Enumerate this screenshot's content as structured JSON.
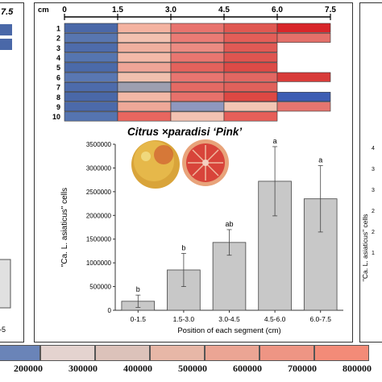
{
  "left_panel": {
    "tick_label": "7.5",
    "bottom_tick": "-5"
  },
  "right_panel": {
    "ylabel": "\"Ca. L. asiaticus\" cells",
    "yticks": [
      "4",
      "3",
      "3",
      "2",
      "2",
      "1"
    ]
  },
  "heatmap": {
    "unit": "cm",
    "ticks": [
      "0",
      "1.5",
      "3.0",
      "4.5",
      "6.0",
      "7.5"
    ],
    "rows": [
      "1",
      "2",
      "3",
      "4",
      "5",
      "6",
      "7",
      "8",
      "9",
      "10"
    ],
    "colors": [
      [
        "#4a68a8",
        "#f4b3a1",
        "#e8736e",
        "#e05852",
        "#d8262a"
      ],
      [
        "#5876b0",
        "#f2c1b0",
        "#ea7b75",
        "#e35e58",
        "#e4706a"
      ],
      [
        "#4e6cab",
        "#f0b09f",
        "#ec8b82",
        "#e05a55",
        ""
      ],
      [
        "#5575b0",
        "#f3b9a8",
        "#e97670",
        "#df5550",
        ""
      ],
      [
        "#4b6aa9",
        "#efa597",
        "#e3625c",
        "#dc4b47",
        ""
      ],
      [
        "#5977b2",
        "#f0c0ae",
        "#e87570",
        "#e26762",
        "#d83c3a"
      ],
      [
        "#4d6bab",
        "#9d9fb0",
        "#e46a64",
        "#e0615b",
        ""
      ],
      [
        "#4a68a8",
        "#f3b8a6",
        "#e7716b",
        "#dd4843",
        "#3d5db3"
      ],
      [
        "#4c6aaa",
        "#eea898",
        "#8f98bf",
        "#f2c6b4",
        "#e5756f"
      ],
      [
        "#5574b0",
        "#e8665f",
        "#f3c2b2",
        "#e65f59",
        ""
      ]
    ],
    "title": "Citrus ×paradisi ‘Pink’"
  },
  "legend": {
    "colors": [
      "#6a84b8",
      "#e4d3cf",
      "#dcc2ba",
      "#e7b7a7",
      "#eba594",
      "#ee9584",
      "#f38b78"
    ],
    "labels": [
      "200000",
      "300000",
      "400000",
      "500000",
      "600000",
      "700000",
      "800000"
    ]
  },
  "chart_data": {
    "type": "bar",
    "categories": [
      "0-1.5",
      "1.5-3.0",
      "3.0-4.5",
      "4.5-6.0",
      "6.0-7.5"
    ],
    "values": [
      190000,
      850000,
      1430000,
      2720000,
      2350000
    ],
    "errors": [
      130000,
      350000,
      270000,
      730000,
      700000
    ],
    "letters": [
      "b",
      "b",
      "ab",
      "a",
      "a"
    ],
    "xlabel": "Position of each segment (cm)",
    "ylabel": "\"Ca. L. asiaticus\" cells",
    "ylim": [
      0,
      3500000
    ],
    "yticks": [
      "0",
      "500000",
      "1000000",
      "1500000",
      "2000000",
      "2500000",
      "3000000",
      "3500000"
    ],
    "bar_color": "#c8c8c8"
  }
}
